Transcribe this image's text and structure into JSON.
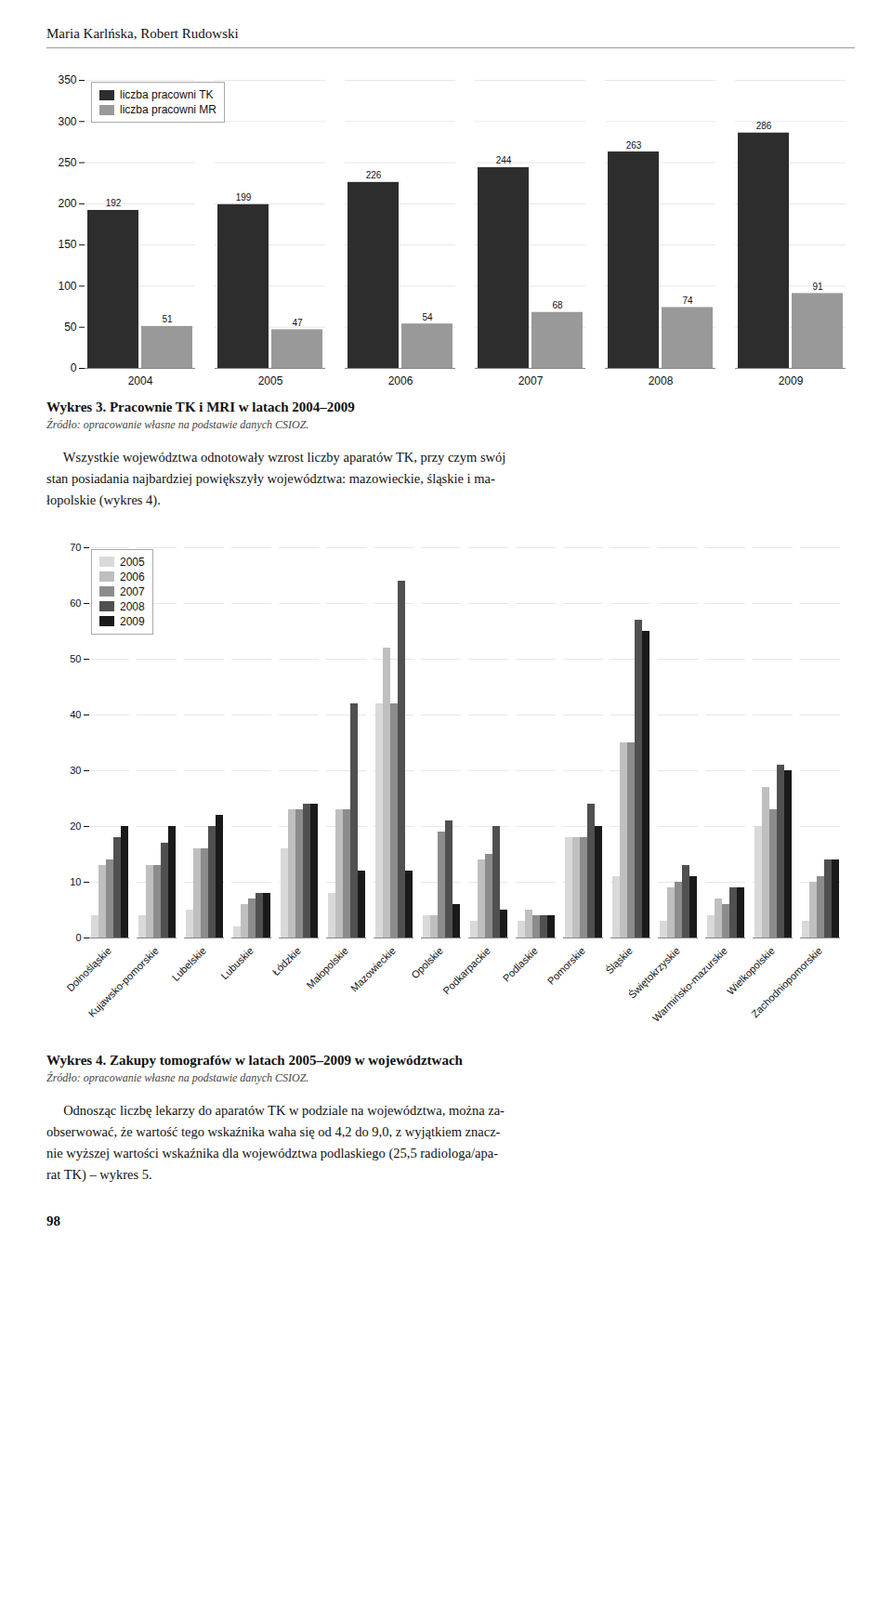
{
  "header": "Maria Karlńska, Robert Rudowski",
  "chart_data": [
    {
      "type": "bar",
      "title": "Wykres 3. Pracownie TK i MRI w latach 2004–2009",
      "annotations": [
        "Źródło: opracowanie własne na podstawie danych CSIOZ."
      ],
      "categories": [
        "2004",
        "2005",
        "2006",
        "2007",
        "2008",
        "2009"
      ],
      "series": [
        {
          "name": "liczba pracowni TK",
          "color": "#2d2d2d",
          "values": [
            192,
            199,
            226,
            244,
            263,
            286
          ]
        },
        {
          "name": "liczba pracowni MR",
          "color": "#999999",
          "values": [
            51,
            47,
            54,
            68,
            74,
            91
          ]
        }
      ],
      "ylim": [
        0,
        350
      ],
      "yticks": [
        0,
        50,
        100,
        150,
        200,
        250,
        300,
        350
      ],
      "grid": true,
      "legend": "upper left",
      "data_labels": true
    },
    {
      "type": "bar",
      "title": "Wykres 4. Zakupy tomografów w latach 2005–2009 w województwach",
      "annotations": [
        "Źródło: opracowanie własne na podstawie danych CSIOZ."
      ],
      "categories": [
        "Dolnośląskie",
        "Kujawsko-pomorskie",
        "Lubelskie",
        "Lubuskie",
        "Łódzkie",
        "Małopolskie",
        "Mazowieckie",
        "Opolskie",
        "Podkarpackie",
        "Podlaskie",
        "Pomorskie",
        "Śląskie",
        "Świętokrzyskie",
        "Warmińsko-mazurskie",
        "Wielkopolskie",
        "Zachodniopomorskie"
      ],
      "series": [
        {
          "name": "2005",
          "color": "#d9d9d9",
          "values": [
            4,
            4,
            5,
            2,
            16,
            8,
            42,
            4,
            3,
            3,
            18,
            11,
            3,
            4,
            20,
            3
          ]
        },
        {
          "name": "2006",
          "color": "#bfbfbf",
          "values": [
            13,
            13,
            16,
            6,
            23,
            23,
            52,
            4,
            14,
            5,
            18,
            35,
            9,
            7,
            27,
            10
          ]
        },
        {
          "name": "2007",
          "color": "#8c8c8c",
          "values": [
            14,
            13,
            16,
            7,
            23,
            23,
            42,
            19,
            15,
            4,
            18,
            35,
            10,
            6,
            23,
            11
          ]
        },
        {
          "name": "2008",
          "color": "#505050",
          "values": [
            18,
            17,
            20,
            8,
            24,
            42,
            64,
            21,
            20,
            4,
            24,
            57,
            13,
            9,
            31,
            14
          ]
        },
        {
          "name": "2009",
          "color": "#1a1a1a",
          "values": [
            20,
            20,
            22,
            8,
            24,
            12,
            12,
            6,
            5,
            4,
            20,
            55,
            11,
            9,
            30,
            14
          ]
        }
      ],
      "ylim": [
        0,
        70
      ],
      "yticks": [
        0,
        10,
        20,
        30,
        40,
        50,
        60,
        70
      ],
      "grid": true,
      "legend": "upper left"
    }
  ],
  "paragraphs": [
    [
      "     Wszystkie województwa odnotowały wzrost liczby aparatów TK, przy czym swój",
      "stan posiadania najbardziej powiększyły województwa: mazowieckie, śląskie i ma-",
      "łopolskie (wykres 4)."
    ],
    [
      "     Odnosząc liczbę lekarzy do aparatów TK w podziale na województwa, można za-",
      "obserwować, że wartość tego wskaźnika waha się od 4,2 do 9,0, z wyjątkiem znacz-",
      "nie wyższej wartości wskaźnika dla województwa podlaskiego (25,5 radiologa/apa-",
      "rat TK) – wykres 5."
    ]
  ],
  "footer": "98"
}
